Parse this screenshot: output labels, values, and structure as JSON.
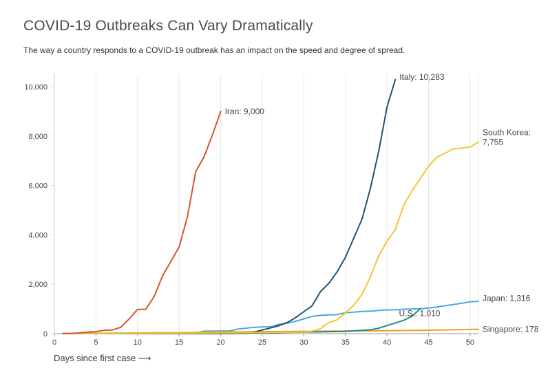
{
  "header": {
    "title": "COVID-19 Outbreaks Can Vary Dramatically",
    "subtitle": "The way a country responds to a COVID-19 outbreak has an impact on the speed and degree of spread."
  },
  "chart_data": {
    "type": "line",
    "title": "COVID-19 Outbreaks Can Vary Dramatically",
    "subtitle": "The way a country responds to a COVID-19 outbreak has an impact on the speed and degree of spread.",
    "xlabel": "Days since first case ⟶",
    "ylabel": "",
    "xlim": [
      0,
      51
    ],
    "ylim": [
      0,
      10500
    ],
    "x_ticks": [
      0,
      5,
      10,
      15,
      20,
      25,
      30,
      35,
      40,
      45,
      50
    ],
    "y_ticks": [
      0,
      2000,
      4000,
      6000,
      8000,
      10000
    ],
    "y_tick_labels": [
      "0",
      "2,000",
      "4,000",
      "6,000",
      "8,000",
      "10,000"
    ],
    "grid": "vertical",
    "series": [
      {
        "name": "Japan",
        "label": "Japan: 1,316",
        "color": "#4aa8dc",
        "points": [
          [
            1,
            5
          ],
          [
            10,
            10
          ],
          [
            16,
            15
          ],
          [
            17,
            30
          ],
          [
            18,
            100
          ],
          [
            20,
            110
          ],
          [
            21,
            105
          ],
          [
            22,
            180
          ],
          [
            23,
            220
          ],
          [
            24,
            260
          ],
          [
            25,
            270
          ],
          [
            26,
            280
          ],
          [
            27,
            380
          ],
          [
            28,
            420
          ],
          [
            29,
            500
          ],
          [
            30,
            600
          ],
          [
            31,
            700
          ],
          [
            32,
            740
          ],
          [
            33,
            760
          ],
          [
            34,
            770
          ],
          [
            35,
            850
          ],
          [
            36,
            870
          ],
          [
            37,
            900
          ],
          [
            38,
            910
          ],
          [
            39,
            940
          ],
          [
            40,
            960
          ],
          [
            41,
            970
          ],
          [
            42,
            990
          ],
          [
            43,
            1000
          ],
          [
            44,
            1010
          ],
          [
            45,
            1040
          ],
          [
            46,
            1080
          ],
          [
            47,
            1130
          ],
          [
            48,
            1180
          ],
          [
            49,
            1230
          ],
          [
            50,
            1290
          ],
          [
            51,
            1316
          ]
        ]
      },
      {
        "name": "Singapore",
        "label": "Singapore: 178",
        "color": "#ef9b20",
        "points": [
          [
            1,
            1
          ],
          [
            5,
            10
          ],
          [
            10,
            30
          ],
          [
            15,
            45
          ],
          [
            20,
            70
          ],
          [
            25,
            80
          ],
          [
            30,
            95
          ],
          [
            35,
            110
          ],
          [
            40,
            120
          ],
          [
            45,
            140
          ],
          [
            48,
            160
          ],
          [
            51,
            178
          ]
        ]
      },
      {
        "name": "U.S.",
        "label": "U.S.: 1,010",
        "color": "#1d8a8a",
        "points": [
          [
            1,
            1
          ],
          [
            10,
            12
          ],
          [
            20,
            14
          ],
          [
            25,
            30
          ],
          [
            30,
            60
          ],
          [
            35,
            90
          ],
          [
            38,
            160
          ],
          [
            39,
            220
          ],
          [
            40,
            330
          ],
          [
            41,
            430
          ],
          [
            42,
            540
          ],
          [
            43,
            700
          ],
          [
            44,
            1010
          ]
        ]
      },
      {
        "name": "Italy",
        "label": "Italy: 10,283",
        "color": "#1f5272",
        "points": [
          [
            1,
            2
          ],
          [
            10,
            3
          ],
          [
            20,
            3
          ],
          [
            23,
            20
          ],
          [
            24,
            60
          ],
          [
            25,
            150
          ],
          [
            26,
            230
          ],
          [
            27,
            320
          ],
          [
            28,
            450
          ],
          [
            29,
            650
          ],
          [
            30,
            890
          ],
          [
            31,
            1130
          ],
          [
            32,
            1700
          ],
          [
            33,
            2040
          ],
          [
            34,
            2500
          ],
          [
            35,
            3090
          ],
          [
            36,
            3860
          ],
          [
            37,
            4640
          ],
          [
            38,
            5880
          ],
          [
            39,
            7380
          ],
          [
            40,
            9170
          ],
          [
            41,
            10283
          ]
        ]
      },
      {
        "name": "South Korea",
        "label": "South Korea: 7,755",
        "color": "#f2c62f",
        "points": [
          [
            1,
            1
          ],
          [
            20,
            30
          ],
          [
            25,
            50
          ],
          [
            30,
            60
          ],
          [
            31,
            100
          ],
          [
            32,
            200
          ],
          [
            33,
            450
          ],
          [
            34,
            560
          ],
          [
            35,
            840
          ],
          [
            36,
            1150
          ],
          [
            37,
            1590
          ],
          [
            38,
            2300
          ],
          [
            39,
            3150
          ],
          [
            40,
            3740
          ],
          [
            41,
            4210
          ],
          [
            42,
            5190
          ],
          [
            43,
            5780
          ],
          [
            44,
            6280
          ],
          [
            45,
            6780
          ],
          [
            46,
            7140
          ],
          [
            47,
            7310
          ],
          [
            48,
            7480
          ],
          [
            49,
            7510
          ],
          [
            50,
            7560
          ],
          [
            51,
            7755
          ]
        ]
      },
      {
        "name": "Iran",
        "label": "Iran: 9,000",
        "color": "#d9532c",
        "points": [
          [
            1,
            2
          ],
          [
            2,
            5
          ],
          [
            3,
            30
          ],
          [
            4,
            60
          ],
          [
            5,
            80
          ],
          [
            6,
            140
          ],
          [
            7,
            150
          ],
          [
            8,
            260
          ],
          [
            9,
            600
          ],
          [
            10,
            980
          ],
          [
            11,
            990
          ],
          [
            12,
            1500
          ],
          [
            13,
            2330
          ],
          [
            14,
            2920
          ],
          [
            15,
            3510
          ],
          [
            16,
            4740
          ],
          [
            17,
            6560
          ],
          [
            18,
            7160
          ],
          [
            19,
            8040
          ],
          [
            20,
            9000
          ]
        ]
      }
    ]
  }
}
